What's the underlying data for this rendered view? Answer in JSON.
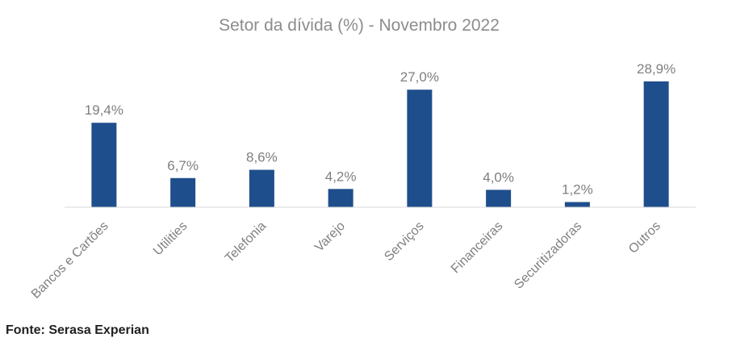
{
  "chart_data": {
    "type": "bar",
    "title": "Setor da dívida (%) - Novembro 2022",
    "categories": [
      "Bancos e Cartões",
      "Utilities",
      "Telefonia",
      "Varejo",
      "Serviços",
      "Financeiras",
      "Securitizadoras",
      "Outros"
    ],
    "values": [
      19.4,
      6.7,
      8.6,
      4.2,
      27.0,
      4.0,
      1.2,
      28.9
    ],
    "value_labels": [
      "19,4%",
      "6,7%",
      "8,6%",
      "4,2%",
      "27,0%",
      "4,0%",
      "1,2%",
      "28,9%"
    ],
    "xlabel": "",
    "ylabel": "",
    "ylim": [
      0,
      30
    ],
    "grid": false,
    "legend": "none",
    "colors": {
      "bar": "#1f4e8c",
      "text": "#7f7f7f",
      "axis": "#d9d9d9"
    }
  },
  "source": "Fonte: Serasa Experian"
}
